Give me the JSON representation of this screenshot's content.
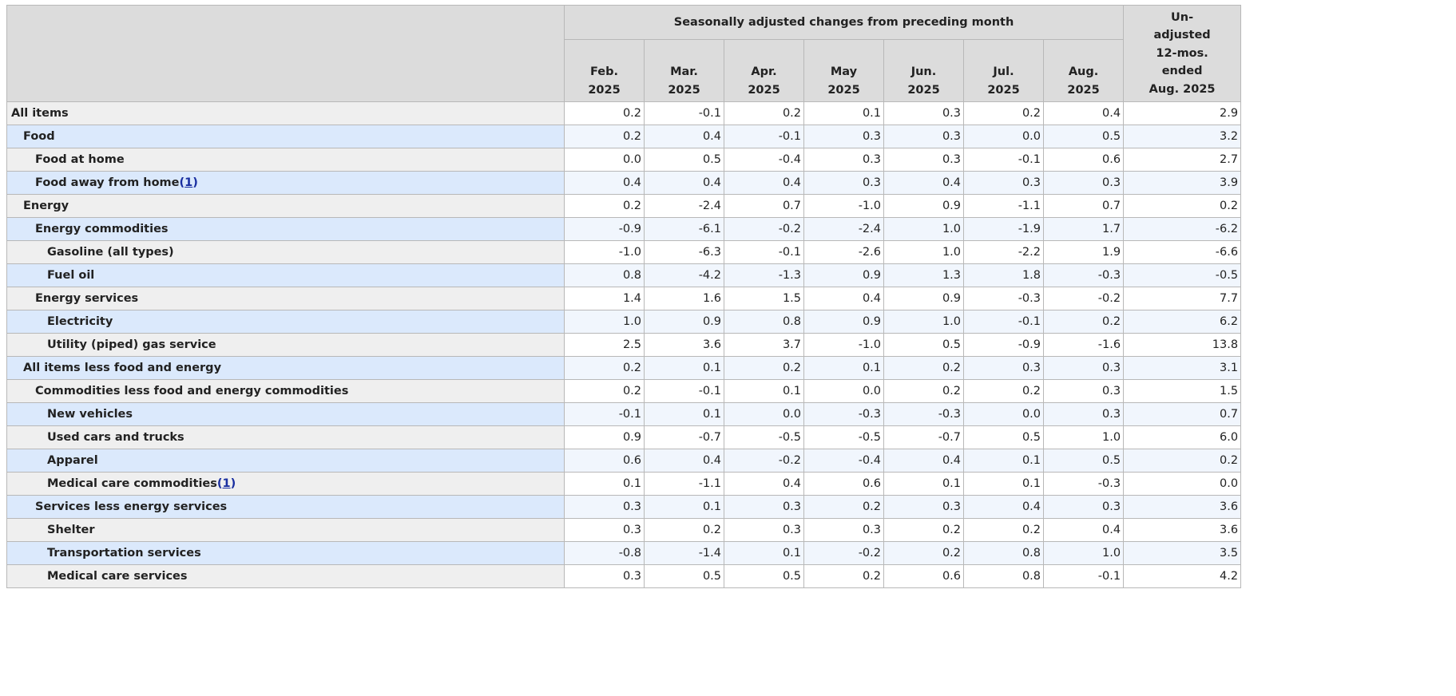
{
  "table": {
    "group_header": "Seasonally adjusted changes from preceding month",
    "unadjusted_header": [
      "Un-",
      "adjusted",
      "12-mos.",
      "ended",
      "Aug. 2025"
    ],
    "months": [
      {
        "month": "Feb.",
        "year": "2025"
      },
      {
        "month": "Mar.",
        "year": "2025"
      },
      {
        "month": "Apr.",
        "year": "2025"
      },
      {
        "month": "May",
        "year": "2025"
      },
      {
        "month": "Jun.",
        "year": "2025"
      },
      {
        "month": "Jul.",
        "year": "2025"
      },
      {
        "month": "Aug.",
        "year": "2025"
      }
    ],
    "rows": [
      {
        "label": "All items",
        "level": 0,
        "footnote": "",
        "values": [
          "0.2",
          "-0.1",
          "0.2",
          "0.1",
          "0.3",
          "0.2",
          "0.4"
        ],
        "unadjusted": "2.9"
      },
      {
        "label": "Food",
        "level": 1,
        "footnote": "",
        "values": [
          "0.2",
          "0.4",
          "-0.1",
          "0.3",
          "0.3",
          "0.0",
          "0.5"
        ],
        "unadjusted": "3.2"
      },
      {
        "label": "Food at home",
        "level": 2,
        "footnote": "",
        "values": [
          "0.0",
          "0.5",
          "-0.4",
          "0.3",
          "0.3",
          "-0.1",
          "0.6"
        ],
        "unadjusted": "2.7"
      },
      {
        "label": "Food away from home",
        "level": 2,
        "footnote": "1",
        "values": [
          "0.4",
          "0.4",
          "0.4",
          "0.3",
          "0.4",
          "0.3",
          "0.3"
        ],
        "unadjusted": "3.9"
      },
      {
        "label": "Energy",
        "level": 1,
        "footnote": "",
        "values": [
          "0.2",
          "-2.4",
          "0.7",
          "-1.0",
          "0.9",
          "-1.1",
          "0.7"
        ],
        "unadjusted": "0.2"
      },
      {
        "label": "Energy commodities",
        "level": 2,
        "footnote": "",
        "values": [
          "-0.9",
          "-6.1",
          "-0.2",
          "-2.4",
          "1.0",
          "-1.9",
          "1.7"
        ],
        "unadjusted": "-6.2"
      },
      {
        "label": "Gasoline (all types)",
        "level": 3,
        "footnote": "",
        "values": [
          "-1.0",
          "-6.3",
          "-0.1",
          "-2.6",
          "1.0",
          "-2.2",
          "1.9"
        ],
        "unadjusted": "-6.6"
      },
      {
        "label": "Fuel oil",
        "level": 3,
        "footnote": "",
        "values": [
          "0.8",
          "-4.2",
          "-1.3",
          "0.9",
          "1.3",
          "1.8",
          "-0.3"
        ],
        "unadjusted": "-0.5"
      },
      {
        "label": "Energy services",
        "level": 2,
        "footnote": "",
        "values": [
          "1.4",
          "1.6",
          "1.5",
          "0.4",
          "0.9",
          "-0.3",
          "-0.2"
        ],
        "unadjusted": "7.7"
      },
      {
        "label": "Electricity",
        "level": 3,
        "footnote": "",
        "values": [
          "1.0",
          "0.9",
          "0.8",
          "0.9",
          "1.0",
          "-0.1",
          "0.2"
        ],
        "unadjusted": "6.2"
      },
      {
        "label": "Utility (piped) gas service",
        "level": 3,
        "footnote": "",
        "values": [
          "2.5",
          "3.6",
          "3.7",
          "-1.0",
          "0.5",
          "-0.9",
          "-1.6"
        ],
        "unadjusted": "13.8"
      },
      {
        "label": "All items less food and energy",
        "level": 1,
        "footnote": "",
        "values": [
          "0.2",
          "0.1",
          "0.2",
          "0.1",
          "0.2",
          "0.3",
          "0.3"
        ],
        "unadjusted": "3.1"
      },
      {
        "label": "Commodities less food and energy commodities",
        "level": 2,
        "footnote": "",
        "values": [
          "0.2",
          "-0.1",
          "0.1",
          "0.0",
          "0.2",
          "0.2",
          "0.3"
        ],
        "unadjusted": "1.5"
      },
      {
        "label": "New vehicles",
        "level": 3,
        "footnote": "",
        "values": [
          "-0.1",
          "0.1",
          "0.0",
          "-0.3",
          "-0.3",
          "0.0",
          "0.3"
        ],
        "unadjusted": "0.7"
      },
      {
        "label": "Used cars and trucks",
        "level": 3,
        "footnote": "",
        "values": [
          "0.9",
          "-0.7",
          "-0.5",
          "-0.5",
          "-0.7",
          "0.5",
          "1.0"
        ],
        "unadjusted": "6.0"
      },
      {
        "label": "Apparel",
        "level": 3,
        "footnote": "",
        "values": [
          "0.6",
          "0.4",
          "-0.2",
          "-0.4",
          "0.4",
          "0.1",
          "0.5"
        ],
        "unadjusted": "0.2"
      },
      {
        "label": "Medical care commodities",
        "level": 3,
        "footnote": "1",
        "values": [
          "0.1",
          "-1.1",
          "0.4",
          "0.6",
          "0.1",
          "0.1",
          "-0.3"
        ],
        "unadjusted": "0.0"
      },
      {
        "label": "Services less energy services",
        "level": 2,
        "footnote": "",
        "values": [
          "0.3",
          "0.1",
          "0.3",
          "0.2",
          "0.3",
          "0.4",
          "0.3"
        ],
        "unadjusted": "3.6"
      },
      {
        "label": "Shelter",
        "level": 3,
        "footnote": "",
        "values": [
          "0.3",
          "0.2",
          "0.3",
          "0.3",
          "0.2",
          "0.2",
          "0.4"
        ],
        "unadjusted": "3.6"
      },
      {
        "label": "Transportation services",
        "level": 3,
        "footnote": "",
        "values": [
          "-0.8",
          "-1.4",
          "0.1",
          "-0.2",
          "0.2",
          "0.8",
          "1.0"
        ],
        "unadjusted": "3.5"
      },
      {
        "label": "Medical care services",
        "level": 3,
        "footnote": "",
        "values": [
          "0.3",
          "0.5",
          "0.5",
          "0.2",
          "0.6",
          "0.8",
          "-0.1"
        ],
        "unadjusted": "4.2"
      }
    ]
  }
}
